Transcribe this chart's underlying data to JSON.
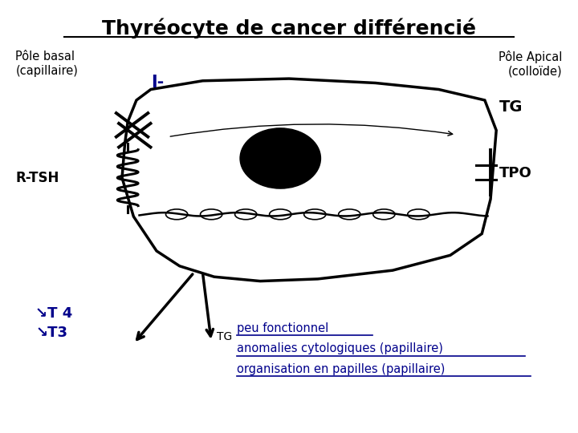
{
  "title": "Thyréocyte de cancer différencié",
  "title_fontsize": 18,
  "bg_color": "#ffffff",
  "text_black": "#000000",
  "text_blue": "#00008B",
  "pole_basal": "Pôle basal\n(capillaire)",
  "pole_apical": "Pôle Apical\n(colloïde)",
  "I_minus": "I-",
  "R_TSH": "R-TSH",
  "TG_top": "TG",
  "TPO": "TPO",
  "T4": "↘T 4",
  "T3": "↘T3",
  "TG_bottom": "TG",
  "line1": "peu fonctionnel",
  "line2": "anomalies cytologiques (papillaire)",
  "line3": "organisation en papilles (papillaire)"
}
